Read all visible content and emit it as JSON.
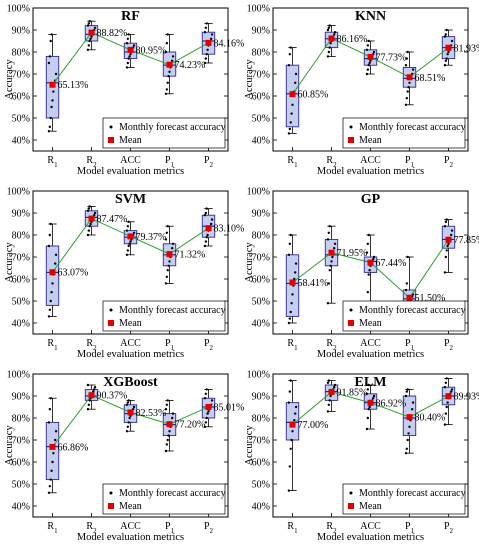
{
  "legend": {
    "points_label": "Monthly forecast accuracy",
    "mean_label": "Mean"
  },
  "colors": {
    "box_fill": "#c5cdf0",
    "box_edge": "#2b2b8a",
    "mean": "#e00000",
    "line": "#2ca02c",
    "point": "#000000"
  },
  "chart_data": [
    {
      "type": "box",
      "title": "RF",
      "xlabel": "Model evaluation metrics",
      "ylabel": "Accuracy",
      "categories": [
        "R1",
        "R2",
        "ACC",
        "P1",
        "P2"
      ],
      "y_ticks": [
        "40%",
        "50%",
        "60%",
        "70%",
        "80%",
        "90%",
        "100%"
      ],
      "ylim": [
        35,
        100
      ],
      "legend_position": "bottom-right",
      "grid": false,
      "boxes": [
        {
          "q1": 50,
          "median": 66,
          "q3": 78,
          "whisker_low": 44,
          "whisker_high": 88,
          "points": [
            44,
            46,
            50,
            55,
            58,
            62,
            65,
            67,
            70,
            75,
            78,
            85,
            88
          ]
        },
        {
          "q1": 85,
          "median": 88,
          "q3": 92,
          "whisker_low": 81,
          "whisker_high": 94,
          "points": [
            81,
            83,
            85,
            86,
            87,
            88,
            89,
            90,
            91,
            92,
            93,
            94
          ]
        },
        {
          "q1": 77,
          "median": 80,
          "q3": 84,
          "whisker_low": 73,
          "whisker_high": 88,
          "points": [
            73,
            75,
            77,
            78,
            79,
            80,
            81,
            82,
            83,
            84,
            86,
            88
          ]
        },
        {
          "q1": 69,
          "median": 74,
          "q3": 80,
          "whisker_low": 61,
          "whisker_high": 88,
          "points": [
            61,
            63,
            66,
            69,
            71,
            73,
            74,
            76,
            78,
            80,
            84,
            88
          ]
        },
        {
          "q1": 79,
          "median": 85,
          "q3": 89,
          "whisker_low": 75,
          "whisker_high": 93,
          "points": [
            75,
            77,
            79,
            81,
            83,
            84,
            85,
            86,
            88,
            89,
            91,
            93
          ]
        }
      ],
      "means": [
        65.13,
        88.82,
        80.95,
        74.23,
        84.16
      ],
      "mean_labels": [
        "65.13%",
        "88.82%",
        "80.95%",
        "74.23%",
        "84.16%"
      ]
    },
    {
      "type": "box",
      "title": "KNN",
      "xlabel": "Model evaluation metrics",
      "ylabel": "Accuracy",
      "categories": [
        "R1",
        "R2",
        "ACC",
        "P1",
        "P2"
      ],
      "y_ticks": [
        "40%",
        "50%",
        "60%",
        "70%",
        "80%",
        "90%",
        "100%"
      ],
      "ylim": [
        35,
        100
      ],
      "legend_position": "bottom-right",
      "grid": false,
      "boxes": [
        {
          "q1": 46,
          "median": 61,
          "q3": 74,
          "whisker_low": 43,
          "whisker_high": 82,
          "points": [
            43,
            45,
            48,
            52,
            56,
            60,
            62,
            66,
            70,
            74,
            79,
            82
          ]
        },
        {
          "q1": 82,
          "median": 86,
          "q3": 89,
          "whisker_low": 78,
          "whisker_high": 92,
          "points": [
            78,
            80,
            82,
            84,
            85,
            86,
            87,
            88,
            89,
            90,
            91,
            92
          ]
        },
        {
          "q1": 74,
          "median": 77,
          "q3": 81,
          "whisker_low": 70,
          "whisker_high": 85,
          "points": [
            70,
            72,
            74,
            75,
            76,
            77,
            78,
            79,
            80,
            81,
            83,
            85
          ]
        },
        {
          "q1": 64,
          "median": 68,
          "q3": 73,
          "whisker_low": 56,
          "whisker_high": 80,
          "points": [
            56,
            59,
            62,
            64,
            66,
            68,
            69,
            70,
            72,
            74,
            77,
            80
          ]
        },
        {
          "q1": 77,
          "median": 82,
          "q3": 87,
          "whisker_low": 74,
          "whisker_high": 90,
          "points": [
            74,
            76,
            77,
            79,
            80,
            81,
            82,
            83,
            85,
            87,
            88,
            90
          ]
        }
      ],
      "means": [
        60.85,
        86.16,
        77.73,
        68.51,
        81.93
      ],
      "mean_labels": [
        "60.85%",
        "86.16%",
        "77.73%",
        "68.51%",
        "81.93%"
      ]
    },
    {
      "type": "box",
      "title": "SVM",
      "xlabel": "Model evaluation metrics",
      "ylabel": "Accuracy",
      "categories": [
        "R1",
        "R2",
        "ACC",
        "P1",
        "P2"
      ],
      "y_ticks": [
        "40%",
        "50%",
        "60%",
        "70%",
        "80%",
        "90%",
        "100%"
      ],
      "ylim": [
        35,
        100
      ],
      "legend_position": "bottom-right",
      "grid": false,
      "boxes": [
        {
          "q1": 48,
          "median": 63,
          "q3": 75,
          "whisker_low": 43,
          "whisker_high": 85,
          "points": [
            43,
            46,
            50,
            54,
            58,
            62,
            64,
            67,
            71,
            75,
            80,
            85
          ]
        },
        {
          "q1": 84,
          "median": 88,
          "q3": 91,
          "whisker_low": 80,
          "whisker_high": 93,
          "points": [
            80,
            82,
            84,
            85,
            86,
            87,
            88,
            89,
            90,
            91,
            92,
            93
          ]
        },
        {
          "q1": 76,
          "median": 79,
          "q3": 82,
          "whisker_low": 71,
          "whisker_high": 86,
          "points": [
            71,
            73,
            75,
            76,
            77,
            78,
            79,
            80,
            81,
            82,
            84,
            86
          ]
        },
        {
          "q1": 66,
          "median": 71,
          "q3": 76,
          "whisker_low": 58,
          "whisker_high": 84,
          "points": [
            58,
            61,
            64,
            66,
            68,
            70,
            72,
            74,
            76,
            78,
            81,
            84
          ]
        },
        {
          "q1": 79,
          "median": 84,
          "q3": 89,
          "whisker_low": 75,
          "whisker_high": 92,
          "points": [
            75,
            77,
            79,
            80,
            82,
            83,
            84,
            85,
            87,
            89,
            90,
            92
          ]
        }
      ],
      "means": [
        63.07,
        87.47,
        79.37,
        71.32,
        83.1
      ],
      "mean_labels": [
        "63.07%",
        "87.47%",
        "79.37%",
        "71.32%",
        "83.10%"
      ]
    },
    {
      "type": "box",
      "title": "GP",
      "xlabel": "Model evaluation metrics",
      "ylabel": "Accuracy",
      "categories": [
        "R1",
        "R2",
        "ACC",
        "P1",
        "P2"
      ],
      "y_ticks": [
        "40%",
        "50%",
        "60%",
        "70%",
        "80%",
        "90%",
        "100%"
      ],
      "ylim": [
        35,
        100
      ],
      "legend_position": "bottom-right",
      "grid": false,
      "boxes": [
        {
          "q1": 43,
          "median": 58,
          "q3": 71,
          "whisker_low": 40,
          "whisker_high": 80,
          "points": [
            40,
            42,
            45,
            49,
            53,
            57,
            60,
            63,
            67,
            71,
            76,
            80
          ]
        },
        {
          "q1": 66,
          "median": 71,
          "q3": 78,
          "whisker_low": 49,
          "whisker_high": 84,
          "points": [
            49,
            58,
            64,
            66,
            68,
            70,
            72,
            74,
            76,
            78,
            81,
            84
          ]
        },
        {
          "q1": 63,
          "median": 68,
          "q3": 70,
          "whisker_low": 46,
          "whisker_high": 80,
          "points": [
            46,
            54,
            62,
            64,
            66,
            67,
            68,
            69,
            70,
            72,
            76,
            80
          ]
        },
        {
          "q1": 48,
          "median": 51,
          "q3": 55,
          "whisker_low": 44,
          "whisker_high": 70,
          "points": [
            44,
            46,
            47,
            48,
            49,
            50,
            51,
            52,
            53,
            55,
            58,
            70
          ]
        },
        {
          "q1": 74,
          "median": 78,
          "q3": 84,
          "whisker_low": 63,
          "whisker_high": 87,
          "points": [
            63,
            70,
            73,
            75,
            76,
            77,
            78,
            80,
            82,
            84,
            86,
            87
          ]
        }
      ],
      "means": [
        58.41,
        71.95,
        67.44,
        51.5,
        77.85
      ],
      "mean_labels": [
        "58.41%",
        "71.95%",
        "67.44%",
        "51.50%",
        "77.85%"
      ]
    },
    {
      "type": "box",
      "title": "XGBoost",
      "xlabel": "Model evaluation metrics",
      "ylabel": "Accuracy",
      "categories": [
        "R1",
        "R2",
        "ACC",
        "P1",
        "P2"
      ],
      "y_ticks": [
        "40%",
        "50%",
        "60%",
        "70%",
        "80%",
        "90%",
        "100%"
      ],
      "ylim": [
        35,
        100
      ],
      "legend_position": "bottom-right",
      "grid": false,
      "boxes": [
        {
          "q1": 52,
          "median": 67,
          "q3": 78,
          "whisker_low": 46,
          "whisker_high": 89,
          "points": [
            46,
            49,
            52,
            56,
            60,
            64,
            67,
            70,
            74,
            78,
            84,
            89
          ]
        },
        {
          "q1": 88,
          "median": 90,
          "q3": 93,
          "whisker_low": 84,
          "whisker_high": 95,
          "points": [
            84,
            86,
            88,
            89,
            90,
            91,
            92,
            93,
            94,
            95
          ]
        },
        {
          "q1": 78,
          "median": 82,
          "q3": 86,
          "whisker_low": 74,
          "whisker_high": 88,
          "points": [
            74,
            76,
            78,
            80,
            81,
            82,
            83,
            84,
            85,
            86,
            87,
            88
          ]
        },
        {
          "q1": 72,
          "median": 77,
          "q3": 82,
          "whisker_low": 65,
          "whisker_high": 88,
          "points": [
            65,
            68,
            70,
            72,
            74,
            76,
            78,
            80,
            82,
            84,
            86,
            88
          ]
        },
        {
          "q1": 80,
          "median": 85,
          "q3": 89,
          "whisker_low": 76,
          "whisker_high": 93,
          "points": [
            76,
            78,
            80,
            82,
            83,
            84,
            85,
            86,
            88,
            89,
            91,
            93
          ]
        }
      ],
      "means": [
        66.86,
        90.37,
        82.53,
        77.2,
        85.01
      ],
      "mean_labels": [
        "66.86%",
        "90.37%",
        "82.53%",
        "77.20%",
        "85.01%"
      ]
    },
    {
      "type": "box",
      "title": "ELM",
      "xlabel": "Model evaluation metrics",
      "ylabel": "Accuracy",
      "categories": [
        "R1",
        "R2",
        "ACC",
        "P1",
        "P2"
      ],
      "y_ticks": [
        "40%",
        "50%",
        "60%",
        "70%",
        "80%",
        "90%",
        "100%"
      ],
      "ylim": [
        35,
        100
      ],
      "legend_position": "bottom-right",
      "grid": false,
      "boxes": [
        {
          "q1": 70,
          "median": 78,
          "q3": 87,
          "whisker_low": 47,
          "whisker_high": 97,
          "points": [
            47,
            58,
            66,
            70,
            74,
            77,
            79,
            82,
            85,
            87,
            92,
            97
          ]
        },
        {
          "q1": 88,
          "median": 92,
          "q3": 95,
          "whisker_low": 83,
          "whisker_high": 97,
          "points": [
            83,
            86,
            88,
            90,
            91,
            92,
            93,
            94,
            95,
            96,
            97
          ]
        },
        {
          "q1": 84,
          "median": 87,
          "q3": 91,
          "whisker_low": 75,
          "whisker_high": 95,
          "points": [
            75,
            80,
            84,
            85,
            86,
            87,
            88,
            89,
            90,
            91,
            93,
            95
          ]
        },
        {
          "q1": 72,
          "median": 80,
          "q3": 90,
          "whisker_low": 64,
          "whisker_high": 93,
          "points": [
            64,
            66,
            70,
            73,
            76,
            79,
            81,
            84,
            87,
            90,
            92,
            93
          ]
        },
        {
          "q1": 86,
          "median": 90,
          "q3": 94,
          "whisker_low": 77,
          "whisker_high": 98,
          "points": [
            77,
            82,
            85,
            87,
            89,
            90,
            91,
            92,
            93,
            94,
            96,
            98
          ]
        }
      ],
      "means": [
        77.0,
        91.85,
        86.92,
        80.4,
        89.93
      ],
      "mean_labels": [
        "77.00%",
        "91.85%",
        "86.92%",
        "80.40%",
        "89.93%"
      ]
    }
  ]
}
